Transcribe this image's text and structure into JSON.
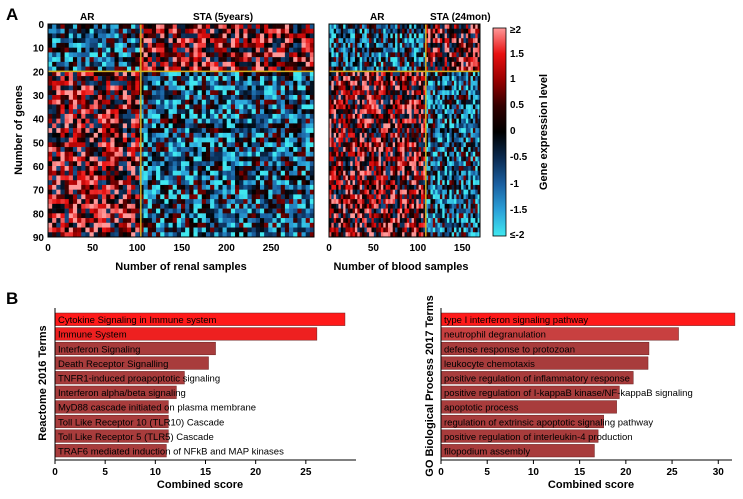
{
  "panel_a": {
    "letter": "A",
    "heatmaps": [
      {
        "groups": [
          "AR",
          "STA (5years)"
        ],
        "xlabel": "Number of renal samples",
        "xticks": [
          0,
          50,
          100,
          150,
          200,
          250
        ],
        "xlim": [
          0,
          298
        ],
        "group_split": 104,
        "ylabel": "Number of genes",
        "yticks": [
          0,
          10,
          20,
          30,
          40,
          50,
          60,
          70,
          80,
          90
        ],
        "ylim": [
          0,
          90
        ],
        "gene_split": 20
      },
      {
        "groups": [
          "AR",
          "STA (24mon)"
        ],
        "xlabel": "Number of blood samples",
        "xticks": [
          0,
          50,
          100,
          150
        ],
        "xlim": [
          0,
          170
        ],
        "group_split": 109,
        "gene_split": 20
      }
    ],
    "colorbar": {
      "label": "Gene expression level",
      "tick_labels": [
        "≥2",
        "1.5",
        "1",
        "0.5",
        "0",
        "-0.5",
        "-1",
        "-1.5",
        "≤-2"
      ],
      "colors": [
        "#ff9999",
        "#e81010",
        "#990000",
        "#330000",
        "#000000",
        "#0a2a50",
        "#1a5fa0",
        "#2aa0d8",
        "#40e8f0"
      ]
    }
  },
  "panel_b": {
    "letter": "B",
    "charts": [
      {
        "type": "bar",
        "title": "Reactome 2016 Terms",
        "xlabel": "Combined score",
        "xticks": [
          0,
          5,
          10,
          15,
          20,
          25
        ],
        "xlim": [
          0,
          30
        ],
        "categories": [
          "Cytokine Signaling in Immune system",
          "Immune System",
          "Interferon Signaling",
          "Death Receptor Signalling",
          "TNFR1-induced proapoptotic signaling",
          "Interferon alpha/beta signaling",
          "MyD88 cascade initiated on plasma membrane",
          "Toll Like Receptor 10 (TLR10) Cascade",
          "Toll Like Receptor 5 (TLR5) Cascade",
          "TRAF6 mediated induction of NFkB and MAP kinases"
        ],
        "values": [
          28.9,
          26.1,
          16.0,
          15.3,
          12.9,
          12.1,
          11.3,
          11.3,
          11.3,
          11.1
        ],
        "colors": [
          "#ff1a1a",
          "#ee2020",
          "#a83c3c",
          "#a83c3c",
          "#a83c3c",
          "#a83c3c",
          "#a83c3c",
          "#a83c3c",
          "#a83c3c",
          "#a83c3c"
        ]
      },
      {
        "type": "bar",
        "title": "GO Biological Process 2017 Terms",
        "xlabel": "Combined score",
        "xticks": [
          0,
          5,
          10,
          15,
          20,
          25,
          30
        ],
        "xlim": [
          0,
          33
        ],
        "categories": [
          "type I interferon signaling pathway",
          "neutrophil degranulation",
          "defense response to protozoan",
          "leukocyte chemotaxis",
          "positive regulation of inflammatory response",
          "positive regulation of I-kappaB kinase/NF-kappaB signaling",
          "apoptotic process",
          "regulation of extrinsic apoptotic signaling pathway",
          "positive regulation of interleukin-4 production",
          "filopodium assembly"
        ],
        "values": [
          31.8,
          25.7,
          22.5,
          22.4,
          20.8,
          19.3,
          19.0,
          17.6,
          17.0,
          16.6
        ],
        "colors": [
          "#ff1a1a",
          "#c84040",
          "#a83c3c",
          "#a83c3c",
          "#a83c3c",
          "#a83c3c",
          "#a83c3c",
          "#a83c3c",
          "#a83c3c",
          "#a83c3c"
        ]
      }
    ]
  }
}
